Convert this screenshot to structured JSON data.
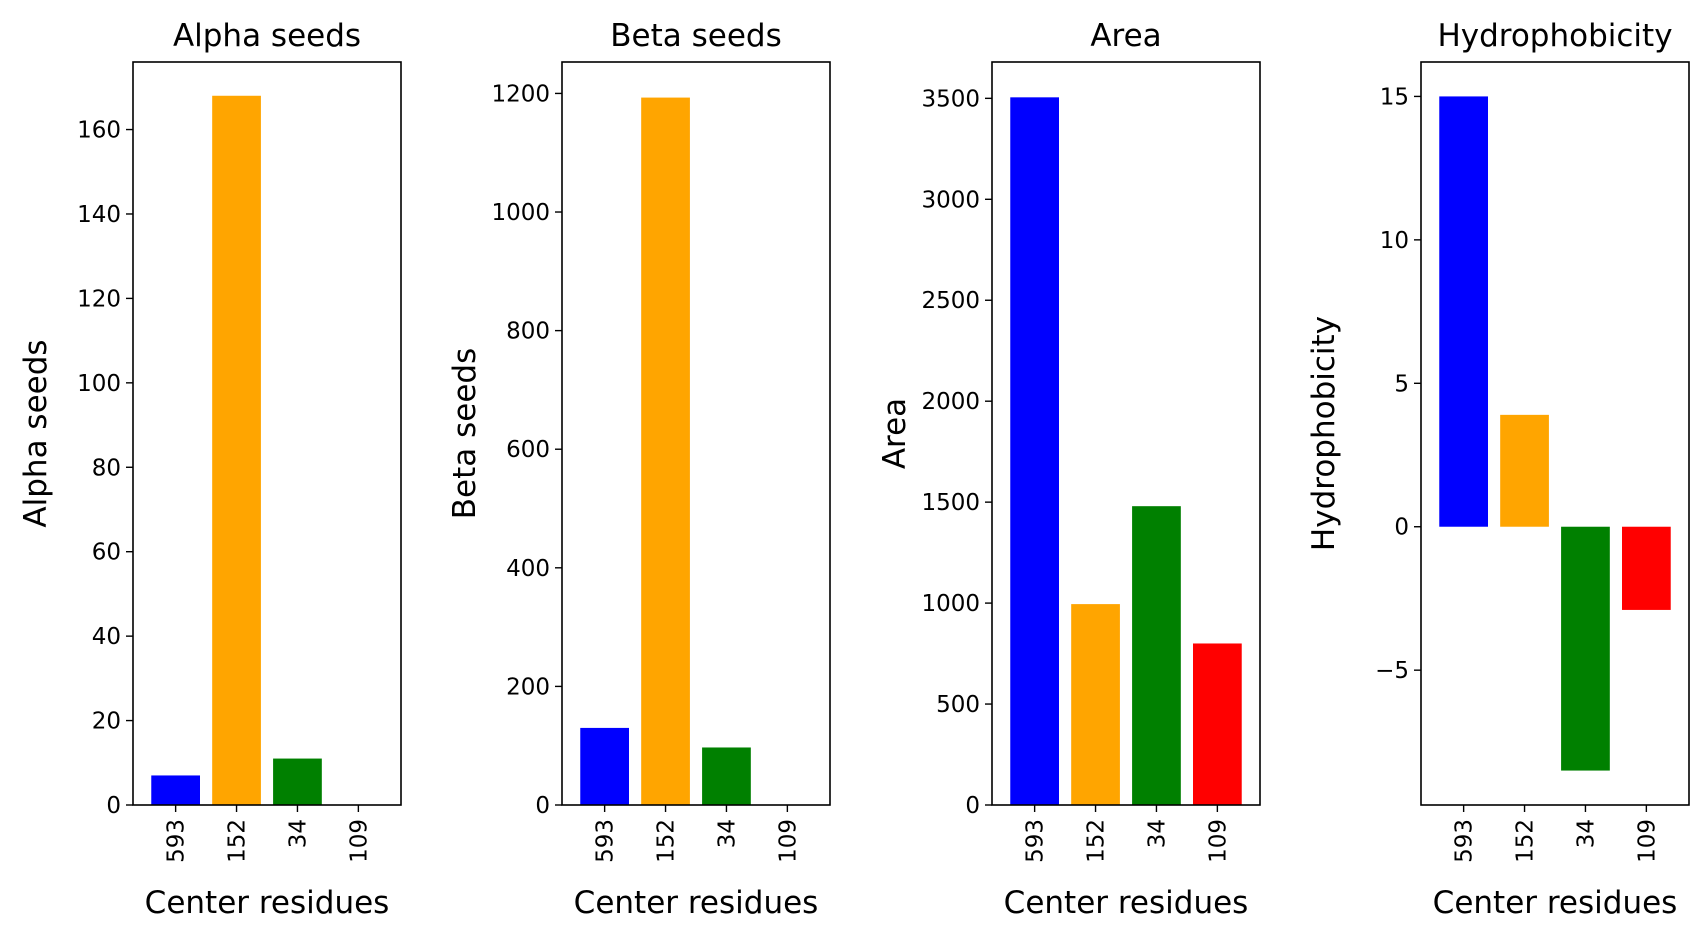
{
  "chart_data": [
    {
      "type": "bar",
      "title": "Alpha seeds",
      "xlabel": "Center residues",
      "ylabel": "Alpha seeds",
      "categories": [
        "593",
        "152",
        "34",
        "109"
      ],
      "values": [
        7,
        168,
        11,
        0
      ],
      "colors": [
        "#0000ff",
        "#ffa500",
        "#008000",
        "#ff0000"
      ],
      "ylim": [
        0,
        176
      ],
      "yticks": [
        0,
        20,
        40,
        60,
        80,
        100,
        120,
        140,
        160
      ],
      "ytick_labels": [
        "0",
        "20",
        "40",
        "60",
        "80",
        "100",
        "120",
        "140",
        "160"
      ],
      "grid": false
    },
    {
      "type": "bar",
      "title": "Beta seeds",
      "xlabel": "Center residues",
      "ylabel": "Beta seeds",
      "categories": [
        "593",
        "152",
        "34",
        "109"
      ],
      "values": [
        130,
        1193,
        97,
        0
      ],
      "colors": [
        "#0000ff",
        "#ffa500",
        "#008000",
        "#ff0000"
      ],
      "ylim": [
        0,
        1253
      ],
      "yticks": [
        0,
        200,
        400,
        600,
        800,
        1000,
        1200
      ],
      "ytick_labels": [
        "0",
        "200",
        "400",
        "600",
        "800",
        "1000",
        "1200"
      ],
      "grid": false
    },
    {
      "type": "bar",
      "title": "Area",
      "xlabel": "Center residues",
      "ylabel": "Area",
      "categories": [
        "593",
        "152",
        "34",
        "109"
      ],
      "values": [
        3505,
        995,
        1480,
        800
      ],
      "colors": [
        "#0000ff",
        "#ffa500",
        "#008000",
        "#ff0000"
      ],
      "ylim": [
        0,
        3680
      ],
      "yticks": [
        0,
        500,
        1000,
        1500,
        2000,
        2500,
        3000,
        3500
      ],
      "ytick_labels": [
        "0",
        "500",
        "1000",
        "1500",
        "2000",
        "2500",
        "3000",
        "3500"
      ],
      "grid": false
    },
    {
      "type": "bar",
      "title": "Hydrophobicity",
      "xlabel": "Center residues",
      "ylabel": "Hydrophobicity",
      "categories": [
        "593",
        "152",
        "34",
        "109"
      ],
      "values": [
        15,
        3.9,
        -8.5,
        -2.9
      ],
      "colors": [
        "#0000ff",
        "#ffa500",
        "#008000",
        "#ff0000"
      ],
      "ylim": [
        -9.7,
        16.2
      ],
      "yticks": [
        -5,
        0,
        5,
        10,
        15
      ],
      "ytick_labels": [
        "−5",
        "0",
        "5",
        "10",
        "15"
      ],
      "grid": false
    }
  ]
}
